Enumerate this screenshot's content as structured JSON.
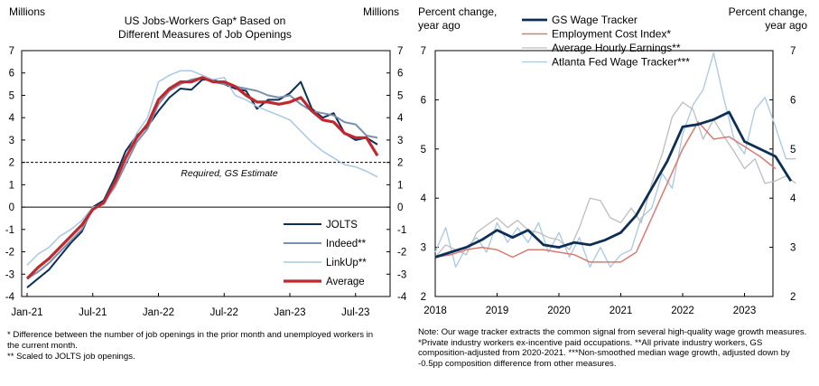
{
  "chart_data": [
    {
      "type": "line",
      "title": "US Jobs-Workers Gap* Based on Different Measures of Job Openings",
      "title_lines": [
        "US Jobs-Workers Gap* Based on",
        "Different Measures of Job Openings"
      ],
      "ylabel_left": "Millions",
      "ylabel_right": "Millions",
      "ylim": [
        -4,
        7
      ],
      "yticks": [
        -4,
        -3,
        -2,
        -1,
        0,
        1,
        2,
        3,
        4,
        5,
        6,
        7
      ],
      "ytick_labels": [
        "-4",
        "-3",
        "-2",
        "-1",
        "0",
        "1",
        "2",
        "3",
        "4",
        "5",
        "6",
        "7"
      ],
      "x_tick_labels": [
        "Jan-21",
        "Jul-21",
        "Jan-22",
        "Jul-22",
        "Jan-23",
        "Jul-23"
      ],
      "x_tick_months": [
        0,
        6,
        12,
        18,
        24,
        30
      ],
      "x_months": [
        0,
        1,
        2,
        3,
        4,
        5,
        6,
        7,
        8,
        9,
        10,
        11,
        12,
        13,
        14,
        15,
        16,
        17,
        18,
        19,
        20,
        21,
        22,
        23,
        24,
        25,
        26,
        27,
        28,
        29,
        30,
        31,
        32
      ],
      "reference_line": {
        "value": 2,
        "label": "Required, GS Estimate"
      },
      "legend_position": "bottom-right",
      "series": [
        {
          "name": "JOLTS",
          "color": "#0d2e56",
          "values": [
            -3.6,
            -3.2,
            -2.8,
            -2.2,
            -1.6,
            -1.1,
            0.0,
            0.3,
            1.3,
            2.5,
            3.2,
            3.6,
            4.3,
            4.9,
            5.3,
            5.25,
            5.7,
            5.7,
            5.5,
            5.3,
            5.2,
            4.4,
            4.8,
            4.8,
            5.1,
            5.6,
            4.4,
            4.0,
            4.2,
            3.3,
            3.0,
            3.1,
            2.8
          ]
        },
        {
          "name": "Indeed**",
          "color": "#7891b0",
          "values": [
            -3.2,
            -2.9,
            -2.5,
            -2.0,
            -1.5,
            -1.0,
            -0.1,
            0.2,
            0.9,
            1.9,
            2.9,
            3.5,
            4.6,
            5.2,
            5.5,
            5.7,
            5.8,
            5.6,
            5.5,
            5.4,
            5.3,
            5.2,
            5.0,
            4.9,
            5.0,
            4.6,
            4.3,
            4.2,
            4.1,
            3.8,
            3.7,
            3.2,
            3.1
          ]
        },
        {
          "name": "LinkUp**",
          "color": "#a9c8e3",
          "values": [
            -2.6,
            -2.1,
            -1.8,
            -1.3,
            -1.0,
            -0.6,
            0.0,
            0.1,
            1.0,
            2.2,
            3.3,
            4.0,
            5.6,
            5.9,
            6.1,
            6.1,
            5.9,
            5.7,
            5.8,
            5.0,
            4.8,
            4.5,
            4.3,
            4.1,
            3.9,
            3.4,
            2.9,
            2.5,
            2.2,
            1.9,
            1.8,
            1.6,
            1.35
          ]
        },
        {
          "name": "Average",
          "color": "#c0282d",
          "values": [
            -3.2,
            -2.7,
            -2.3,
            -1.8,
            -1.3,
            -0.8,
            -0.1,
            0.2,
            1.1,
            2.2,
            3.1,
            3.7,
            4.8,
            5.3,
            5.6,
            5.6,
            5.8,
            5.6,
            5.6,
            5.4,
            5.0,
            4.7,
            4.7,
            4.6,
            4.7,
            4.9,
            4.3,
            3.9,
            3.8,
            3.3,
            3.1,
            3.1,
            2.3
          ]
        }
      ],
      "footnotes": [
        "* Difference between the number of job openings in the prior month and unemployed workers in the current month.",
        "** Scaled to JOLTS job openings."
      ]
    },
    {
      "type": "line",
      "title": "",
      "ylabel_left": "Percent change, year ago",
      "ylabel_left_lines": [
        "Percent change,",
        "year ago"
      ],
      "ylabel_right": "Percent change, year ago",
      "ylabel_right_lines": [
        "Percent change,",
        "year ago"
      ],
      "ylim": [
        2,
        7
      ],
      "yticks": [
        2,
        3,
        4,
        5,
        6,
        7
      ],
      "ytick_labels": [
        "2",
        "3",
        "4",
        "5",
        "6",
        "7"
      ],
      "x_tick_labels": [
        "2018",
        "2019",
        "2020",
        "2021",
        "2022",
        "2023"
      ],
      "x_tick_years": [
        2018,
        2019,
        2020,
        2021,
        2022,
        2023
      ],
      "xlim": [
        2018,
        2023.9
      ],
      "legend_position": "top-left",
      "series": [
        {
          "name": "GS Wage Tracker",
          "color": "#0d2e56",
          "x": [
            2018.0,
            2018.25,
            2018.5,
            2018.75,
            2019.0,
            2019.25,
            2019.5,
            2019.75,
            2020.0,
            2020.25,
            2020.5,
            2020.75,
            2021.0,
            2021.25,
            2021.5,
            2021.75,
            2022.0,
            2022.25,
            2022.5,
            2022.75,
            2023.0,
            2023.25,
            2023.5,
            2023.75
          ],
          "values": [
            2.8,
            2.9,
            3.0,
            3.15,
            3.35,
            3.2,
            3.35,
            3.05,
            3.0,
            3.1,
            3.05,
            3.15,
            3.3,
            3.65,
            4.2,
            4.75,
            5.45,
            5.5,
            5.6,
            5.75,
            5.15,
            5.0,
            4.85,
            4.35
          ]
        },
        {
          "name": "Employment Cost Index*",
          "color": "#d87a72",
          "x": [
            2018.0,
            2018.25,
            2018.5,
            2018.75,
            2019.0,
            2019.25,
            2019.5,
            2019.75,
            2020.0,
            2020.25,
            2020.5,
            2020.75,
            2021.0,
            2021.25,
            2021.5,
            2021.75,
            2022.0,
            2022.25,
            2022.5,
            2022.75,
            2023.0,
            2023.25,
            2023.5
          ],
          "values": [
            2.8,
            2.85,
            2.95,
            3.0,
            2.95,
            2.8,
            2.95,
            2.95,
            2.9,
            2.85,
            2.7,
            2.7,
            2.7,
            2.9,
            3.6,
            4.3,
            5.0,
            5.55,
            5.2,
            5.25,
            5.05,
            4.85,
            4.6
          ]
        },
        {
          "name": "Average Hourly Earnings**",
          "color": "#bdbdbd",
          "x": [
            2018.0,
            2018.17,
            2018.33,
            2018.5,
            2018.67,
            2018.83,
            2019.0,
            2019.17,
            2019.33,
            2019.5,
            2019.67,
            2019.83,
            2020.0,
            2020.17,
            2020.33,
            2020.5,
            2020.67,
            2020.83,
            2021.0,
            2021.17,
            2021.33,
            2021.5,
            2021.67,
            2021.83,
            2022.0,
            2022.17,
            2022.33,
            2022.5,
            2022.67,
            2022.83,
            2023.0,
            2023.17,
            2023.33,
            2023.5,
            2023.67,
            2023.83
          ],
          "values": [
            2.8,
            3.05,
            2.95,
            2.85,
            3.3,
            3.45,
            3.6,
            3.4,
            3.55,
            3.35,
            3.3,
            3.2,
            3.15,
            2.95,
            3.4,
            4.0,
            3.95,
            3.6,
            3.5,
            3.8,
            3.5,
            4.3,
            4.9,
            5.65,
            5.95,
            5.8,
            5.2,
            5.6,
            5.25,
            4.95,
            4.6,
            4.8,
            4.3,
            4.35,
            4.45,
            4.3
          ]
        },
        {
          "name": "Atlanta Fed Wage Tracker***",
          "color": "#a9c8e3",
          "x": [
            2018.0,
            2018.17,
            2018.33,
            2018.5,
            2018.67,
            2018.83,
            2019.0,
            2019.17,
            2019.33,
            2019.5,
            2019.67,
            2019.83,
            2020.0,
            2020.17,
            2020.33,
            2020.5,
            2020.67,
            2020.83,
            2021.0,
            2021.17,
            2021.33,
            2021.5,
            2021.67,
            2021.83,
            2022.0,
            2022.17,
            2022.33,
            2022.5,
            2022.67,
            2022.83,
            2023.0,
            2023.17,
            2023.33,
            2023.5,
            2023.67,
            2023.83
          ],
          "values": [
            2.9,
            3.4,
            2.6,
            3.0,
            3.2,
            2.9,
            3.5,
            3.1,
            3.4,
            3.1,
            3.5,
            2.9,
            3.3,
            2.8,
            3.2,
            2.6,
            3.0,
            2.6,
            2.85,
            2.95,
            3.6,
            3.8,
            4.5,
            4.2,
            5.3,
            5.9,
            6.2,
            6.95,
            6.0,
            5.2,
            4.9,
            5.8,
            6.05,
            5.45,
            4.8,
            4.8
          ]
        }
      ],
      "footnote": "Note: Our wage tracker extracts the common signal from several high-quality wage growth measures. *Private industry workers ex-incentive paid occupations. **All private industry workers, GS composition-adjusted from 2020-2021. ***Non-smoothed median wage growth, adjusted down by -0.5pp composition difference from other measures."
    }
  ]
}
